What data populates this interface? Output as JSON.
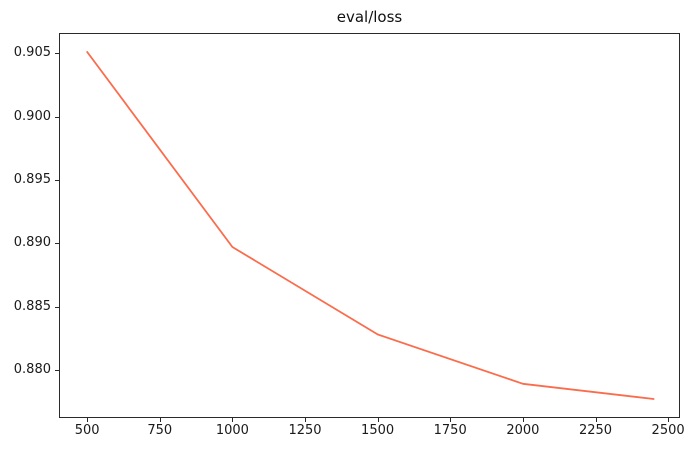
{
  "title": "eval/loss",
  "chart_data": {
    "type": "line",
    "title": "eval/loss",
    "x": [
      500,
      1000,
      1500,
      2000,
      2450
    ],
    "series": [
      {
        "name": "eval/loss",
        "values": [
          0.9051,
          0.8897,
          0.8828,
          0.8789,
          0.8777
        ]
      }
    ],
    "xlabel": "",
    "ylabel": "",
    "xlim": [
      403,
      2541
    ],
    "ylim": [
      0.8762,
      0.9066
    ],
    "x_ticks": [
      500,
      750,
      1000,
      1250,
      1500,
      1750,
      2000,
      2250,
      2500
    ],
    "x_tick_labels": [
      "500",
      "750",
      "1000",
      "1250",
      "1500",
      "1750",
      "2000",
      "2250",
      "2500"
    ],
    "y_ticks": [
      0.88,
      0.885,
      0.89,
      0.895,
      0.9,
      0.905
    ],
    "y_tick_labels": [
      "0.880",
      "0.885",
      "0.890",
      "0.895",
      "0.900",
      "0.905"
    ],
    "grid": false,
    "legend_position": "none",
    "line_color": "#fb6c4c",
    "line_width": 1.8
  },
  "colors": {
    "background": "#ffffff",
    "spine": "#2a2a2a",
    "tick_label": "#1a1a1a",
    "line": "#fb6c4c"
  }
}
